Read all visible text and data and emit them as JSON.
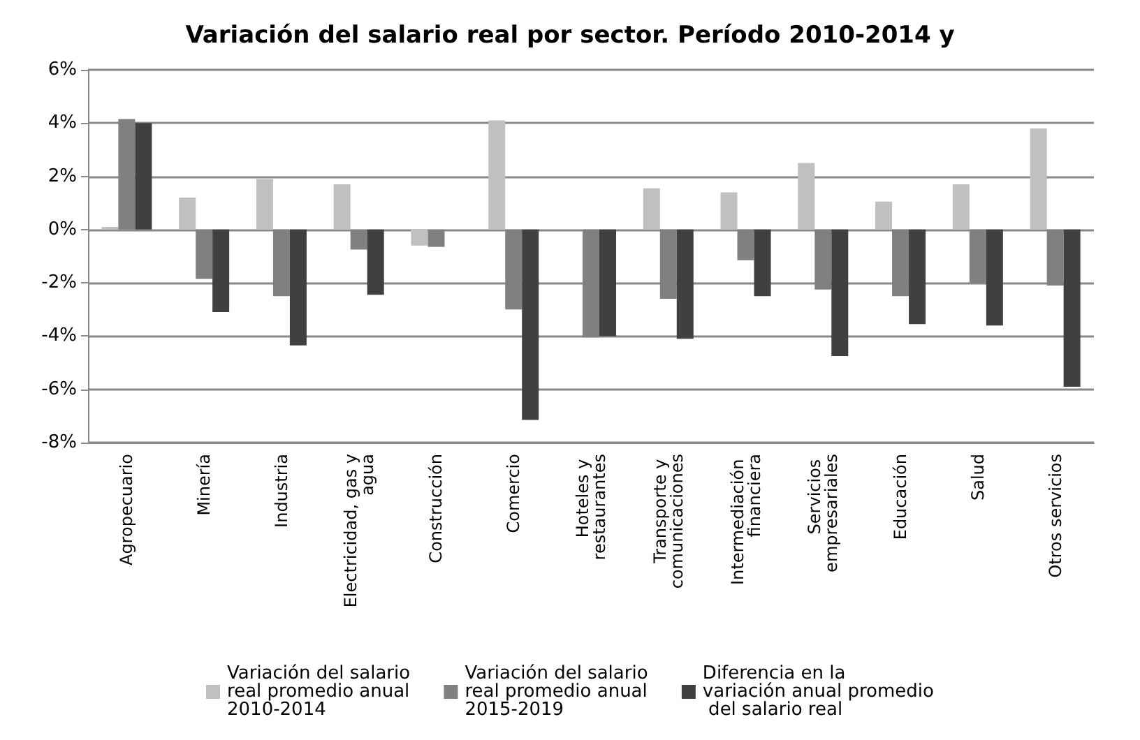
{
  "chart_data": {
    "type": "bar",
    "title": "Variación del salario real por sector. Período 2010-2014 y",
    "categories": [
      "Agropecuario",
      "Minería",
      "Industria",
      "Electricidad, gas y agua",
      "Construcción",
      "Comercio",
      "Hoteles y restaurantes",
      "Transporte y comunicaciones",
      "Intermediación financiera",
      "Servicios empresariales",
      "Educación",
      "Salud",
      "Otros servicios"
    ],
    "series": [
      {
        "name": "Variación del salario real promedio anual 2010-2014",
        "color": "#c0c0c0",
        "values": [
          0.1,
          1.2,
          1.9,
          1.7,
          -0.6,
          4.1,
          null,
          1.55,
          1.4,
          2.5,
          1.05,
          1.7,
          3.8
        ]
      },
      {
        "name": "Variación del salario real promedio anual 2015-2019",
        "color": "#808080",
        "values": [
          4.15,
          -1.85,
          -2.5,
          -0.75,
          -0.65,
          -3.0,
          -4.05,
          -2.6,
          -1.15,
          -2.25,
          -2.5,
          -2.0,
          -2.1
        ]
      },
      {
        "name": "Diferencia en la variación anual promedio del salario real",
        "color": "#404040",
        "values": [
          4.0,
          -3.1,
          -4.35,
          -2.45,
          null,
          -7.15,
          -4.0,
          -4.1,
          -2.5,
          -4.75,
          -3.55,
          -3.6,
          -5.9
        ]
      }
    ],
    "ylim": [
      -8,
      6
    ],
    "yticks": [
      {
        "value": -8,
        "label": "-8%"
      },
      {
        "value": -6,
        "label": "-6%"
      },
      {
        "value": -4,
        "label": "-4%"
      },
      {
        "value": -2,
        "label": "-2%"
      },
      {
        "value": 0,
        "label": "0%"
      },
      {
        "value": 2,
        "label": "2%"
      },
      {
        "value": 4,
        "label": "4%"
      },
      {
        "value": 6,
        "label": "6%"
      }
    ],
    "grid": true,
    "legend": "bottom"
  }
}
